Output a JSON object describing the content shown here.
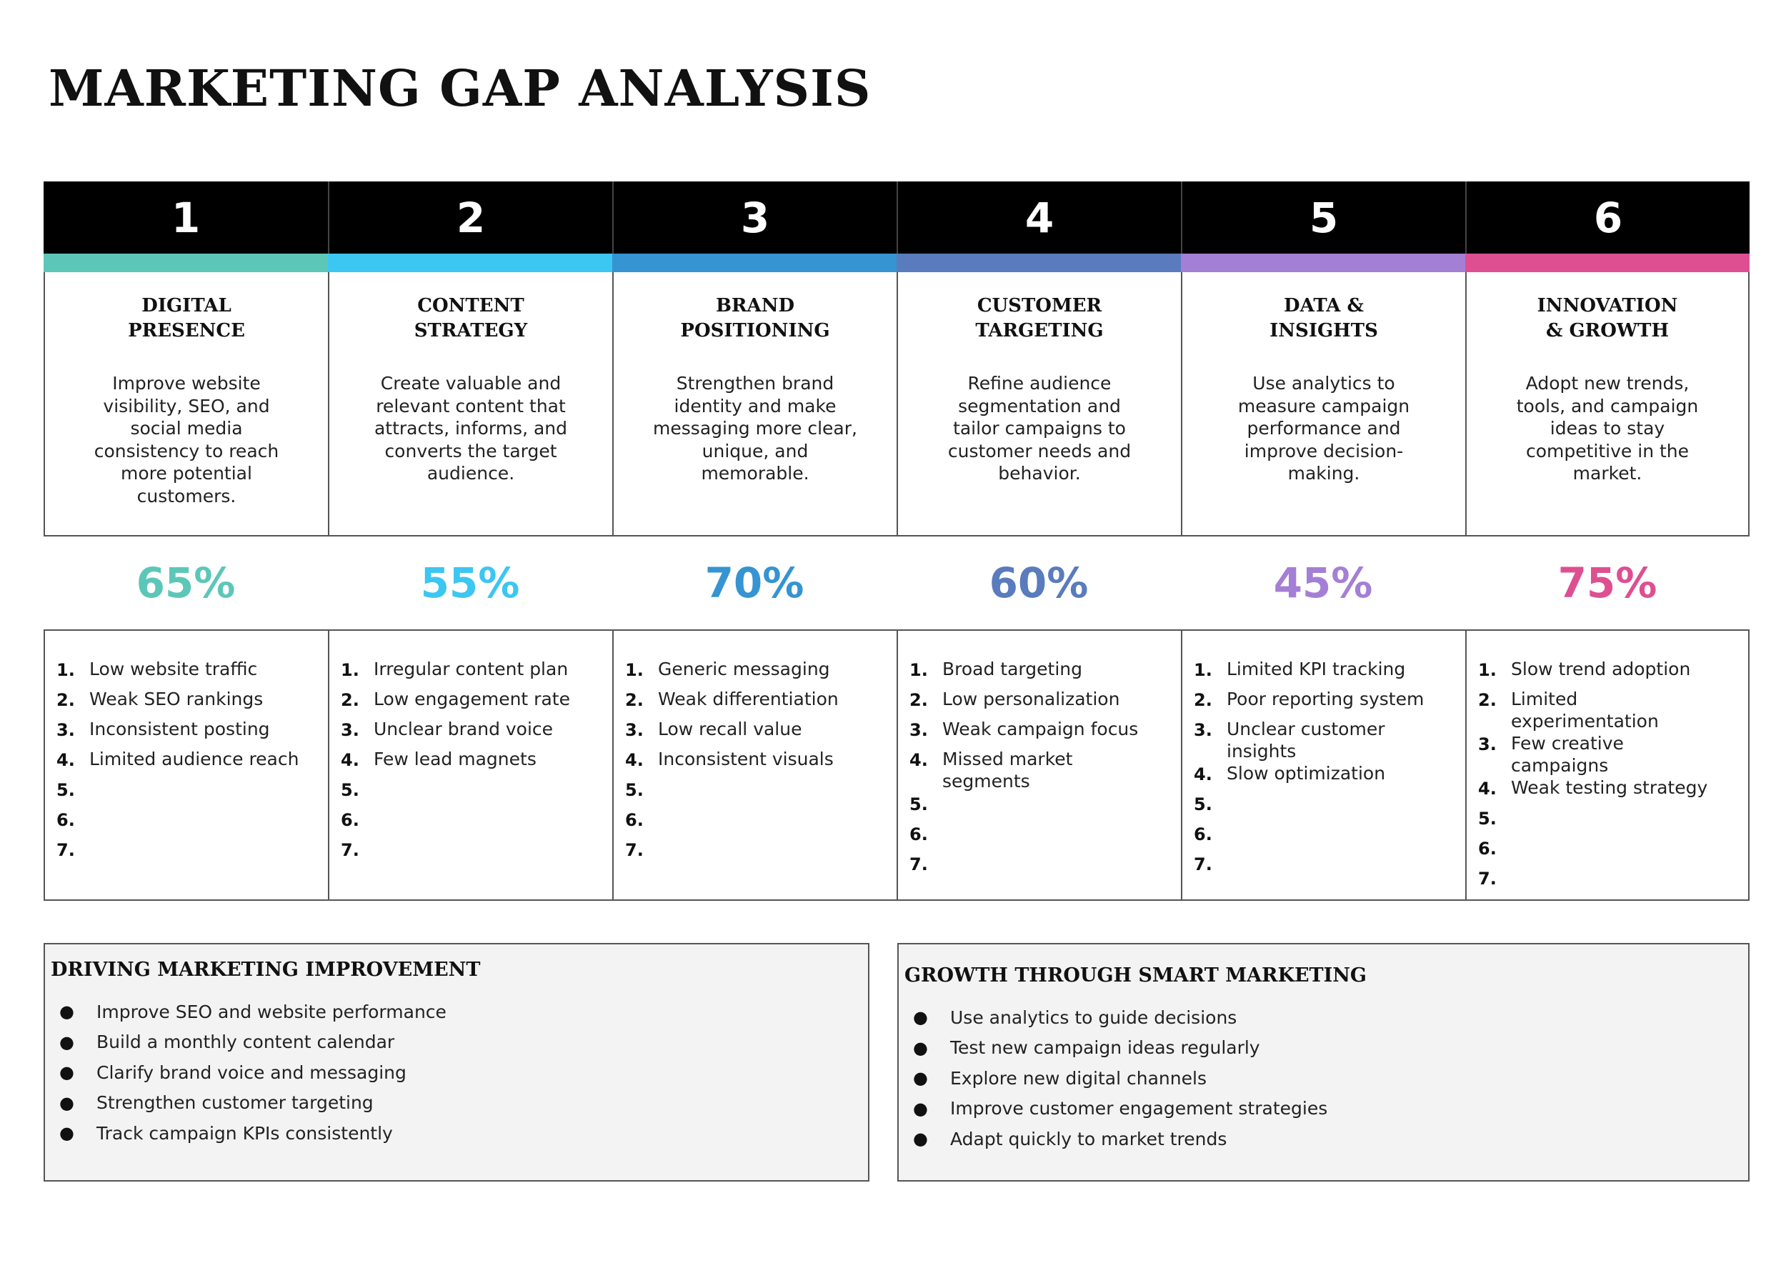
{
  "title": "MARKETING GAP ANALYSIS",
  "columns": [
    {
      "number": "1",
      "color": "#5cc7b8",
      "title_line1": "DIGITAL",
      "title_line2": "PRESENCE",
      "description": "Improve website visibility, SEO, and social media consistency to reach more potential customers.",
      "percent": "65%",
      "gaps": [
        "Low website traffic",
        "Weak SEO rankings",
        "Inconsistent posting",
        "Limited audience reach",
        "",
        "",
        ""
      ]
    },
    {
      "number": "2",
      "color": "#3cc6f2",
      "title_line1": "CONTENT",
      "title_line2": "STRATEGY",
      "description": "Create valuable and relevant content that attracts, informs, and converts the target audience.",
      "percent": "55%",
      "gaps": [
        "Irregular content plan",
        "Low engagement rate",
        "Unclear brand voice",
        "Few lead magnets",
        "",
        "",
        ""
      ]
    },
    {
      "number": "3",
      "color": "#3594d1",
      "title_line1": "BRAND",
      "title_line2": "POSITIONING",
      "description": "Strengthen brand identity and make messaging more clear, unique, and memorable.",
      "percent": "70%",
      "gaps": [
        "Generic messaging",
        "Weak differentiation",
        "Low recall value",
        "Inconsistent visuals",
        "",
        "",
        ""
      ]
    },
    {
      "number": "4",
      "color": "#5a7bbd",
      "title_line1": "CUSTOMER",
      "title_line2": "TARGETING",
      "description": "Refine audience segmentation and tailor campaigns to customer needs and behavior.",
      "percent": "60%",
      "gaps": [
        "Broad targeting",
        "Low personalization",
        "Weak campaign focus",
        "Missed market segments",
        "",
        "",
        ""
      ]
    },
    {
      "number": "5",
      "color": "#a47fd6",
      "title_line1": "DATA &",
      "title_line2": "INSIGHTS",
      "description": "Use analytics to measure campaign performance and improve decision-making.",
      "percent": "45%",
      "gaps": [
        "Limited KPI tracking",
        "Poor reporting system",
        "Unclear customer insights",
        "Slow optimization",
        "",
        "",
        ""
      ]
    },
    {
      "number": "6",
      "color": "#de4f91",
      "title_line1": "INNOVATION",
      "title_line2": "& GROWTH",
      "description": "Adopt new trends, tools, and campaign ideas to stay competitive in the market.",
      "percent": "75%",
      "gaps": [
        "Slow trend adoption",
        "Limited experimentation",
        "Few creative campaigns",
        "Weak testing strategy",
        "",
        "",
        ""
      ]
    }
  ],
  "gap_numbers": [
    "1.",
    "2.",
    "3.",
    "4.",
    "5.",
    "6.",
    "7."
  ],
  "panels": {
    "left": {
      "title": "DRIVING MARKETING IMPROVEMENT",
      "items": [
        "Improve SEO and website performance",
        "Build a monthly content calendar",
        "Clarify brand voice and messaging",
        "Strengthen customer targeting",
        "Track campaign KPIs consistently"
      ]
    },
    "right": {
      "title": "GROWTH THROUGH SMART MARKETING",
      "items": [
        "Use analytics to guide decisions",
        "Test new campaign ideas regularly",
        "Explore new digital channels",
        "Improve customer engagement strategies",
        "Adapt quickly to market trends"
      ]
    }
  },
  "bullet_glyph": "●"
}
